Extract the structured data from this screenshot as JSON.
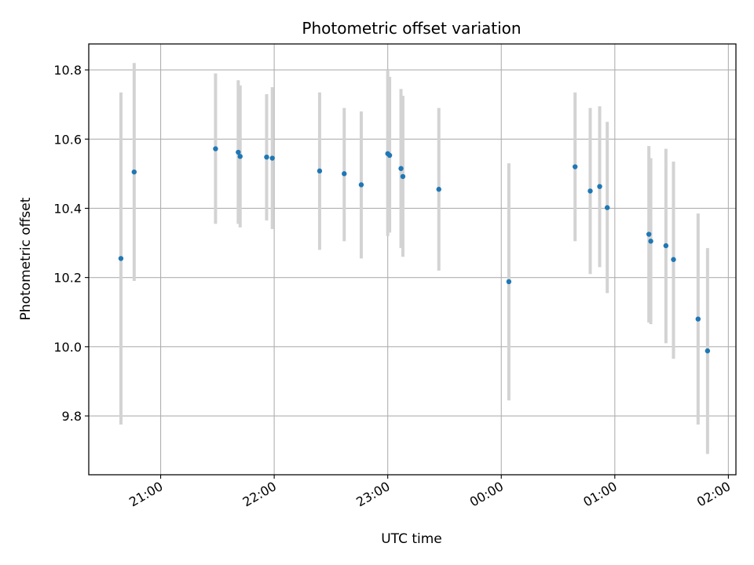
{
  "chart_data": {
    "type": "scatter",
    "title": "Photometric offset variation",
    "xlabel": "UTC time",
    "ylabel": "Photometric offset",
    "x_unit": "UTC time (HH:MM)",
    "xlim": [
      "20:22",
      "02:04"
    ],
    "ylim": [
      9.63,
      10.875
    ],
    "xticks": [
      "21:00",
      "22:00",
      "23:00",
      "00:00",
      "01:00",
      "02:00"
    ],
    "yticks": [
      9.8,
      10.0,
      10.2,
      10.4,
      10.6,
      10.8
    ],
    "ytick_labels": [
      "9.8",
      "10.0",
      "10.2",
      "10.4",
      "10.6",
      "10.8"
    ],
    "grid": true,
    "point_color": "#1f77b4",
    "errorbar_color": "#d3d3d3",
    "points": [
      {
        "x": "20:39",
        "y": 10.255,
        "lo": 9.775,
        "hi": 10.735
      },
      {
        "x": "20:46",
        "y": 10.505,
        "lo": 10.19,
        "hi": 10.82
      },
      {
        "x": "21:29",
        "y": 10.572,
        "lo": 10.355,
        "hi": 10.79
      },
      {
        "x": "21:41",
        "y": 10.562,
        "lo": 10.355,
        "hi": 10.77
      },
      {
        "x": "21:42",
        "y": 10.55,
        "lo": 10.345,
        "hi": 10.755
      },
      {
        "x": "21:56",
        "y": 10.548,
        "lo": 10.365,
        "hi": 10.73
      },
      {
        "x": "21:59",
        "y": 10.545,
        "lo": 10.34,
        "hi": 10.75
      },
      {
        "x": "22:24",
        "y": 10.508,
        "lo": 10.28,
        "hi": 10.735
      },
      {
        "x": "22:37",
        "y": 10.5,
        "lo": 10.305,
        "hi": 10.69
      },
      {
        "x": "22:46",
        "y": 10.468,
        "lo": 10.255,
        "hi": 10.68
      },
      {
        "x": "23:00",
        "y": 10.558,
        "lo": 10.32,
        "hi": 10.8
      },
      {
        "x": "23:01",
        "y": 10.553,
        "lo": 10.33,
        "hi": 10.78
      },
      {
        "x": "23:07",
        "y": 10.515,
        "lo": 10.285,
        "hi": 10.745
      },
      {
        "x": "23:08",
        "y": 10.492,
        "lo": 10.26,
        "hi": 10.725
      },
      {
        "x": "23:27",
        "y": 10.455,
        "lo": 10.22,
        "hi": 10.69
      },
      {
        "x": "00:04",
        "y": 10.188,
        "lo": 9.845,
        "hi": 10.53
      },
      {
        "x": "00:39",
        "y": 10.52,
        "lo": 10.305,
        "hi": 10.735
      },
      {
        "x": "00:47",
        "y": 10.45,
        "lo": 10.21,
        "hi": 10.69
      },
      {
        "x": "00:52",
        "y": 10.463,
        "lo": 10.23,
        "hi": 10.695
      },
      {
        "x": "00:56",
        "y": 10.402,
        "lo": 10.155,
        "hi": 10.65
      },
      {
        "x": "01:18",
        "y": 10.325,
        "lo": 10.07,
        "hi": 10.58
      },
      {
        "x": "01:19",
        "y": 10.305,
        "lo": 10.065,
        "hi": 10.545
      },
      {
        "x": "01:27",
        "y": 10.292,
        "lo": 10.01,
        "hi": 10.572
      },
      {
        "x": "01:31",
        "y": 10.252,
        "lo": 9.965,
        "hi": 10.535
      },
      {
        "x": "01:44",
        "y": 10.08,
        "lo": 9.775,
        "hi": 10.385
      },
      {
        "x": "01:49",
        "y": 9.988,
        "lo": 9.69,
        "hi": 10.285
      }
    ]
  }
}
